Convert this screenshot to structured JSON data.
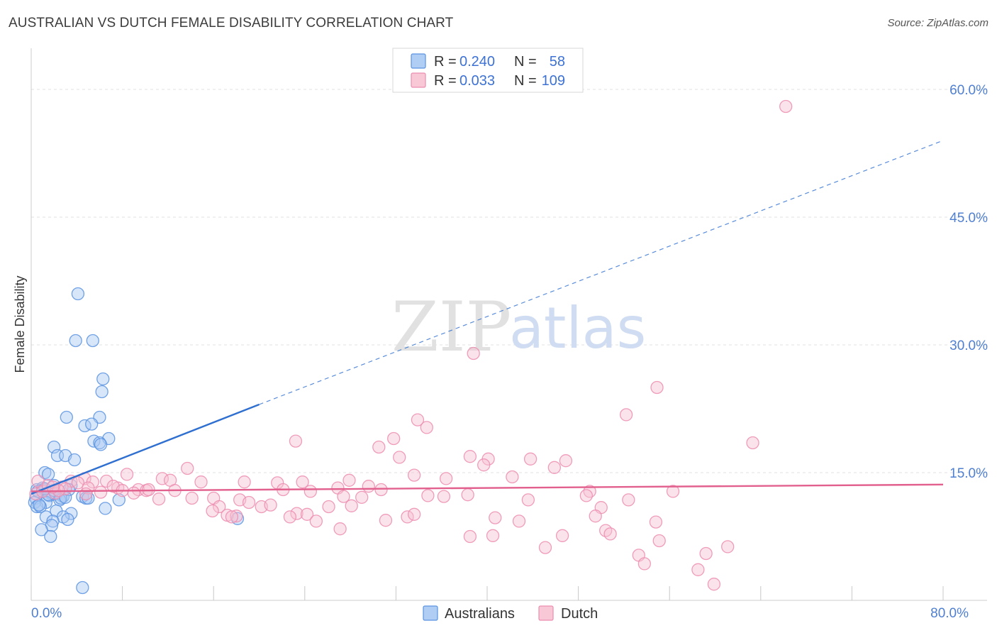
{
  "title": "AUSTRALIAN VS DUTCH FEMALE DISABILITY CORRELATION CHART",
  "source": "Source: ZipAtlas.com",
  "watermark": {
    "zip": "ZIP",
    "atlas": "atlas"
  },
  "legend_top": {
    "r_label": "R =",
    "n_label": "N =",
    "rows": [
      {
        "r": "0.240",
        "n": "58",
        "color": "#8fb8f0"
      },
      {
        "r": "0.033",
        "n": "109",
        "color": "#f5b0c5"
      }
    ]
  },
  "legend_bottom": [
    {
      "label": "Australians",
      "color": "#8fb8f0"
    },
    {
      "label": "Dutch",
      "color": "#f5b0c5"
    }
  ],
  "chart_data": {
    "type": "scatter",
    "ylabel": "Female Disability",
    "xlim": [
      0,
      80
    ],
    "ylim": [
      0,
      64
    ],
    "x_tick_labels": [
      {
        "value": 0,
        "label": "0.0%"
      },
      {
        "value": 80,
        "label": "80.0%"
      }
    ],
    "y_tick_labels": [
      {
        "value": 15,
        "label": "15.0%"
      },
      {
        "value": 30,
        "label": "30.0%"
      },
      {
        "value": 45,
        "label": "45.0%"
      },
      {
        "value": 60,
        "label": "60.0%"
      }
    ],
    "series": [
      {
        "name": "Australians",
        "color": "#5b93e0",
        "fill": "#a9c8f2",
        "trend": {
          "x0": 0,
          "y0": 12.5,
          "x1": 20,
          "y1": 23.0,
          "dash_to_x": 80,
          "dash_to_y": 54.0,
          "color": "#2f6fd0"
        },
        "points": [
          [
            4.1,
            36.0
          ],
          [
            3.9,
            30.5
          ],
          [
            5.4,
            30.5
          ],
          [
            6.3,
            26.0
          ],
          [
            6.2,
            24.5
          ],
          [
            3.1,
            21.5
          ],
          [
            6.0,
            21.5
          ],
          [
            4.7,
            20.5
          ],
          [
            5.3,
            20.7
          ],
          [
            6.8,
            19.0
          ],
          [
            5.5,
            18.7
          ],
          [
            6.0,
            18.5
          ],
          [
            2.0,
            18.0
          ],
          [
            2.3,
            17.0
          ],
          [
            3.0,
            17.0
          ],
          [
            3.8,
            16.5
          ],
          [
            1.2,
            15.0
          ],
          [
            1.5,
            14.8
          ],
          [
            2.0,
            13.5
          ],
          [
            3.5,
            13.5
          ],
          [
            0.5,
            13.0
          ],
          [
            1.0,
            13.0
          ],
          [
            1.8,
            12.5
          ],
          [
            2.2,
            12.5
          ],
          [
            2.8,
            12.2
          ],
          [
            0.4,
            12.0
          ],
          [
            1.6,
            12.3
          ],
          [
            4.5,
            12.2
          ],
          [
            4.8,
            12.0
          ],
          [
            0.3,
            11.5
          ],
          [
            1.3,
            11.5
          ],
          [
            2.5,
            11.8
          ],
          [
            0.5,
            11.0
          ],
          [
            0.8,
            11.0
          ],
          [
            2.2,
            10.5
          ],
          [
            3.5,
            10.2
          ],
          [
            1.3,
            9.8
          ],
          [
            2.8,
            9.8
          ],
          [
            3.2,
            9.5
          ],
          [
            1.9,
            9.3
          ],
          [
            6.5,
            10.8
          ],
          [
            7.7,
            11.8
          ],
          [
            1.8,
            8.8
          ],
          [
            0.9,
            8.3
          ],
          [
            1.7,
            7.5
          ],
          [
            18.1,
            9.6
          ],
          [
            4.5,
            1.5
          ],
          [
            5.0,
            12.0
          ],
          [
            2.6,
            12.0
          ],
          [
            1.0,
            13.2
          ],
          [
            0.6,
            12.8
          ],
          [
            3.3,
            13.0
          ],
          [
            1.5,
            12.4
          ],
          [
            0.7,
            11.2
          ],
          [
            2.0,
            12.9
          ],
          [
            6.1,
            18.3
          ],
          [
            3.0,
            12.1
          ],
          [
            1.2,
            13.1
          ]
        ]
      },
      {
        "name": "Dutch",
        "color": "#ec8db0",
        "fill": "#f7c2d3",
        "trend": {
          "x0": 0,
          "y0": 12.8,
          "x1": 80,
          "y1": 13.6,
          "color": "#e2608d"
        },
        "points": [
          [
            66.2,
            58.0
          ],
          [
            38.8,
            29.0
          ],
          [
            54.9,
            25.0
          ],
          [
            52.2,
            21.8
          ],
          [
            33.9,
            21.2
          ],
          [
            34.7,
            20.3
          ],
          [
            31.8,
            19.0
          ],
          [
            23.2,
            18.7
          ],
          [
            63.3,
            18.5
          ],
          [
            30.5,
            18.0
          ],
          [
            32.3,
            16.8
          ],
          [
            38.5,
            16.9
          ],
          [
            40.1,
            16.6
          ],
          [
            43.8,
            16.6
          ],
          [
            46.9,
            16.4
          ],
          [
            39.7,
            15.9
          ],
          [
            45.9,
            15.6
          ],
          [
            13.7,
            15.5
          ],
          [
            8.4,
            14.8
          ],
          [
            33.6,
            14.7
          ],
          [
            36.4,
            14.3
          ],
          [
            42.2,
            14.5
          ],
          [
            11.5,
            14.3
          ],
          [
            12.2,
            14.1
          ],
          [
            4.7,
            14.3
          ],
          [
            6.6,
            14.0
          ],
          [
            0.6,
            14.0
          ],
          [
            3.5,
            14.0
          ],
          [
            5.4,
            13.9
          ],
          [
            14.9,
            13.9
          ],
          [
            18.7,
            13.9
          ],
          [
            21.6,
            13.8
          ],
          [
            23.8,
            13.9
          ],
          [
            27.9,
            14.1
          ],
          [
            26.9,
            13.2
          ],
          [
            29.6,
            13.4
          ],
          [
            2.7,
            13.3
          ],
          [
            9.4,
            13.0
          ],
          [
            7.6,
            13.2
          ],
          [
            10.1,
            12.9
          ],
          [
            10.3,
            13.0
          ],
          [
            12.6,
            12.9
          ],
          [
            22.1,
            13.0
          ],
          [
            24.5,
            12.8
          ],
          [
            30.7,
            13.0
          ],
          [
            38.3,
            12.4
          ],
          [
            49.0,
            12.8
          ],
          [
            56.3,
            12.8
          ],
          [
            34.8,
            12.3
          ],
          [
            36.2,
            12.2
          ],
          [
            16.0,
            12.0
          ],
          [
            18.3,
            11.8
          ],
          [
            19.1,
            11.5
          ],
          [
            14.1,
            12.0
          ],
          [
            11.2,
            11.9
          ],
          [
            27.4,
            12.2
          ],
          [
            29.0,
            12.1
          ],
          [
            43.6,
            11.8
          ],
          [
            48.7,
            12.3
          ],
          [
            52.4,
            11.8
          ],
          [
            16.5,
            11.0
          ],
          [
            20.2,
            11.0
          ],
          [
            21.0,
            11.2
          ],
          [
            15.9,
            10.5
          ],
          [
            17.2,
            10.0
          ],
          [
            23.3,
            10.2
          ],
          [
            26.1,
            11.0
          ],
          [
            28.1,
            11.1
          ],
          [
            33.0,
            9.8
          ],
          [
            40.7,
            9.7
          ],
          [
            42.8,
            9.3
          ],
          [
            50.0,
            10.9
          ],
          [
            49.5,
            9.9
          ],
          [
            18.0,
            9.9
          ],
          [
            24.2,
            10.1
          ],
          [
            25.0,
            9.3
          ],
          [
            31.1,
            9.4
          ],
          [
            33.6,
            10.1
          ],
          [
            54.8,
            9.2
          ],
          [
            22.7,
            9.8
          ],
          [
            17.6,
            9.8
          ],
          [
            27.1,
            8.4
          ],
          [
            38.5,
            7.5
          ],
          [
            40.5,
            7.6
          ],
          [
            46.6,
            7.6
          ],
          [
            50.4,
            8.2
          ],
          [
            50.8,
            7.8
          ],
          [
            55.1,
            7.0
          ],
          [
            45.1,
            6.2
          ],
          [
            53.3,
            5.3
          ],
          [
            53.8,
            4.3
          ],
          [
            58.5,
            3.6
          ],
          [
            59.2,
            5.5
          ],
          [
            59.9,
            1.9
          ],
          [
            61.1,
            6.3
          ],
          [
            0.4,
            12.5
          ],
          [
            1.0,
            12.8
          ],
          [
            1.5,
            13.5
          ],
          [
            2.1,
            12.6
          ],
          [
            3.0,
            13.1
          ],
          [
            4.1,
            13.8
          ],
          [
            5.0,
            13.2
          ],
          [
            6.1,
            12.7
          ],
          [
            7.2,
            13.4
          ],
          [
            8.0,
            12.9
          ],
          [
            9.0,
            12.6
          ],
          [
            2.4,
            12.9
          ],
          [
            1.9,
            13.3
          ],
          [
            4.8,
            12.5
          ]
        ]
      }
    ]
  }
}
